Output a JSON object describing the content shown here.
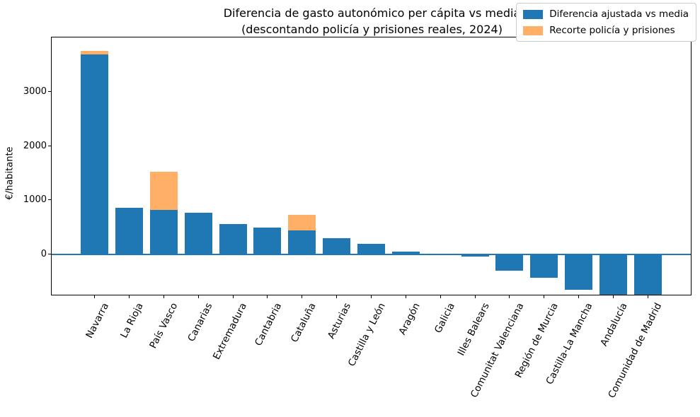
{
  "chart_data": {
    "type": "bar",
    "stacked": true,
    "title": "Diferencia de gasto autonómico per cápita vs media",
    "subtitle": "(descontando policía y prisiones reales, 2024)",
    "ylabel": "€/habitante",
    "xlabel": "",
    "ylim": [
      -750,
      4000
    ],
    "yticks": [
      0,
      1000,
      2000,
      3000
    ],
    "grid": false,
    "legend_position": "upper right",
    "zero_line_color": "#1f77b4",
    "axis_color": "#000000",
    "categories": [
      "Navarra",
      "La Rioja",
      "País Vasco",
      "Canarias",
      "Extremadura",
      "Cantabria",
      "Cataluña",
      "Asturias",
      "Castilla y León",
      "Aragón",
      "Galicia",
      "Illes Balears",
      "Comunitat Valenciana",
      "Región de Murcia",
      "Castilla-La Mancha",
      "Andalucía",
      "Comunidad de Madrid"
    ],
    "series": [
      {
        "name": "Diferencia ajustada vs media",
        "color": "#1f77b4",
        "values": [
          3690,
          860,
          815,
          770,
          550,
          495,
          435,
          290,
          185,
          50,
          -5,
          -45,
          -305,
          -440,
          -660,
          -750,
          -750
        ]
      },
      {
        "name": "Recorte policía y prisiones",
        "color": "#ffaf66",
        "values": [
          65,
          0,
          700,
          0,
          0,
          0,
          295,
          0,
          0,
          0,
          0,
          0,
          0,
          0,
          0,
          0,
          0
        ]
      }
    ],
    "notes": {
      "clipped_below_axis": [
        "Andalucía",
        "Comunidad de Madrid"
      ]
    }
  }
}
